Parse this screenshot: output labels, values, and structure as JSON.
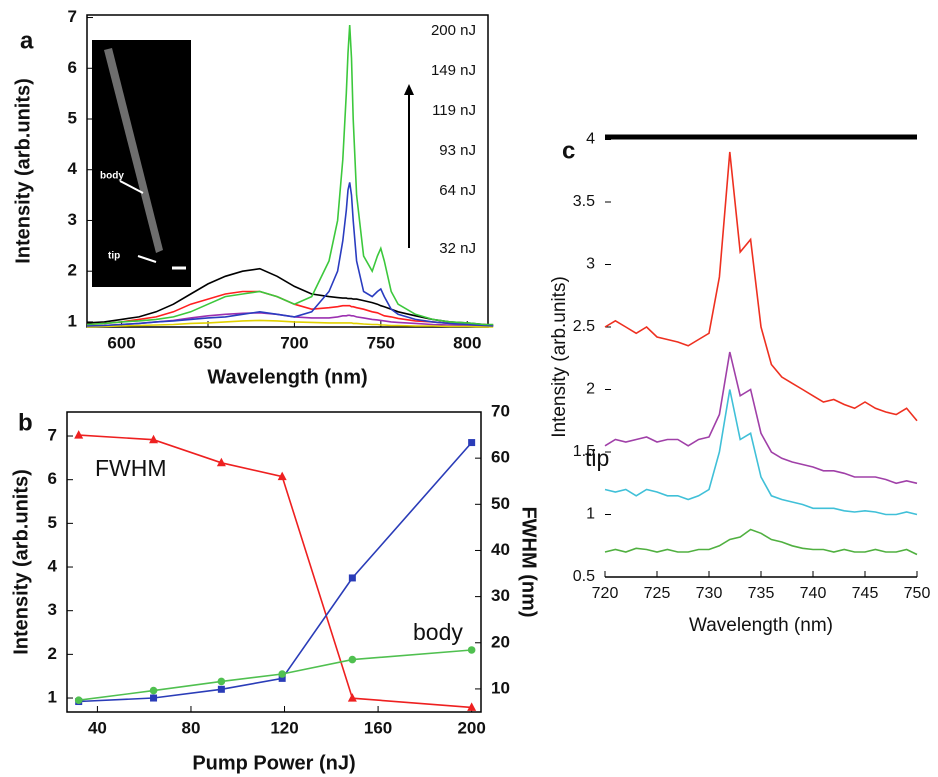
{
  "chart_data": [
    {
      "type": "line",
      "panel": "a",
      "x_label": "Wavelength (nm)",
      "y_label": "Intensity (arb.units)",
      "xlim": [
        580,
        812
      ],
      "xticks": [
        600,
        650,
        700,
        750,
        800
      ],
      "ylim": [
        0.9,
        7.05
      ],
      "yticks": [
        1,
        2,
        3,
        4,
        5,
        6,
        7
      ],
      "annotations": [
        "200 nJ",
        "149 nJ",
        "119 nJ",
        "93 nJ",
        "64 nJ",
        "32 nJ"
      ],
      "inset_labels": [
        "body",
        "tip"
      ],
      "x": [
        580,
        590,
        600,
        610,
        620,
        630,
        640,
        650,
        660,
        670,
        680,
        690,
        700,
        710,
        720,
        725,
        728,
        730,
        731,
        732,
        733,
        734,
        736,
        740,
        745,
        748,
        750,
        752,
        756,
        760,
        770,
        780,
        790,
        800,
        810,
        815
      ],
      "series": [
        {
          "color": "#000000",
          "values": [
            0.98,
            1.0,
            1.05,
            1.1,
            1.2,
            1.35,
            1.55,
            1.75,
            1.9,
            2.0,
            2.05,
            1.9,
            1.7,
            1.55,
            1.5,
            1.48,
            1.47,
            1.47,
            1.46,
            1.46,
            1.46,
            1.45,
            1.45,
            1.42,
            1.38,
            1.35,
            1.32,
            1.3,
            1.25,
            1.2,
            1.12,
            1.05,
            1.0,
            0.98,
            0.95,
            0.93
          ]
        },
        {
          "color": "#ff2020",
          "values": [
            0.95,
            0.97,
            1.0,
            1.05,
            1.1,
            1.2,
            1.35,
            1.45,
            1.55,
            1.6,
            1.6,
            1.5,
            1.35,
            1.25,
            1.28,
            1.3,
            1.32,
            1.32,
            1.32,
            1.32,
            1.3,
            1.3,
            1.28,
            1.25,
            1.2,
            1.18,
            1.15,
            1.12,
            1.1,
            1.07,
            1.02,
            1.0,
            0.97,
            0.96,
            0.95,
            0.94
          ]
        },
        {
          "color": "#9b30b0",
          "values": [
            0.92,
            0.93,
            0.95,
            0.97,
            1.0,
            1.03,
            1.08,
            1.12,
            1.15,
            1.17,
            1.18,
            1.15,
            1.1,
            1.08,
            1.08,
            1.1,
            1.12,
            1.12,
            1.13,
            1.13,
            1.12,
            1.12,
            1.1,
            1.08,
            1.05,
            1.04,
            1.03,
            1.02,
            1.0,
            0.99,
            0.97,
            0.95,
            0.94,
            0.93,
            0.92,
            0.92
          ]
        },
        {
          "color": "#e0d000",
          "values": [
            0.9,
            0.91,
            0.92,
            0.93,
            0.94,
            0.95,
            0.97,
            0.98,
            1.0,
            1.02,
            1.03,
            1.02,
            1.0,
            0.99,
            0.98,
            0.98,
            0.98,
            0.98,
            0.98,
            0.98,
            0.98,
            0.97,
            0.97,
            0.96,
            0.95,
            0.95,
            0.94,
            0.94,
            0.93,
            0.93,
            0.92,
            0.92,
            0.91,
            0.91,
            0.9,
            0.9
          ]
        },
        {
          "color": "#2a3cc0",
          "values": [
            0.92,
            0.93,
            0.95,
            0.97,
            1.0,
            1.02,
            1.05,
            1.08,
            1.1,
            1.15,
            1.2,
            1.15,
            1.1,
            1.2,
            1.6,
            2.0,
            2.6,
            3.2,
            3.6,
            3.75,
            3.5,
            3.0,
            2.2,
            1.6,
            1.5,
            1.6,
            1.65,
            1.5,
            1.25,
            1.15,
            1.05,
            1.0,
            0.97,
            0.95,
            0.93,
            0.92
          ]
        },
        {
          "color": "#3cc83c",
          "values": [
            0.95,
            0.97,
            1.0,
            1.02,
            1.05,
            1.1,
            1.2,
            1.35,
            1.5,
            1.55,
            1.6,
            1.5,
            1.35,
            1.5,
            2.2,
            3.0,
            4.2,
            5.5,
            6.3,
            6.85,
            6.2,
            5.0,
            3.5,
            2.3,
            2.0,
            2.3,
            2.45,
            2.2,
            1.6,
            1.35,
            1.15,
            1.05,
            1.0,
            0.98,
            0.95,
            0.95
          ]
        }
      ]
    },
    {
      "type": "line",
      "panel": "b",
      "x_label": "Pump Power (nJ)",
      "y_label": "Intensity (arb.units)",
      "y2_label": "FWHM (nm)",
      "xlim": [
        27,
        204
      ],
      "xticks": [
        40,
        80,
        120,
        160,
        200
      ],
      "ylim": [
        0.68,
        7.55
      ],
      "yticks": [
        1,
        2,
        3,
        4,
        5,
        6,
        7
      ],
      "y2lim": [
        5,
        70
      ],
      "y2ticks": [
        10,
        20,
        30,
        40,
        50,
        60,
        70
      ],
      "x": [
        32,
        64,
        93,
        119,
        149,
        200
      ],
      "series": [
        {
          "name": "FWHM",
          "color": "#ee2020",
          "marker": "triangle",
          "axis": "y2",
          "values": [
            65,
            64,
            59,
            56,
            8,
            6
          ]
        },
        {
          "name": "tip",
          "color": "#2a3cb8",
          "marker": "square",
          "values": [
            0.92,
            1.0,
            1.2,
            1.45,
            3.75,
            6.85
          ]
        },
        {
          "name": "body",
          "color": "#50c050",
          "marker": "circle",
          "values": [
            0.95,
            1.17,
            1.38,
            1.55,
            1.88,
            2.1
          ]
        }
      ]
    },
    {
      "type": "line",
      "panel": "c",
      "x_label": "Wavelength (nm)",
      "y_label": "Intensity (arb.units)",
      "xlim": [
        720,
        750
      ],
      "xticks": [
        720,
        725,
        730,
        735,
        740,
        745,
        750
      ],
      "ylim": [
        0.5,
        4.02
      ],
      "yticks": [
        0.5,
        1,
        1.5,
        2,
        2.5,
        3,
        3.5,
        4
      ],
      "x": [
        720,
        721,
        722,
        723,
        724,
        725,
        726,
        727,
        728,
        729,
        730,
        731,
        732,
        733,
        734,
        735,
        736,
        737,
        738,
        739,
        740,
        741,
        742,
        743,
        744,
        745,
        746,
        747,
        748,
        749,
        750
      ],
      "series": [
        {
          "color": "#ee3020",
          "values": [
            2.5,
            2.55,
            2.5,
            2.45,
            2.5,
            2.42,
            2.4,
            2.38,
            2.35,
            2.4,
            2.45,
            2.9,
            3.9,
            3.1,
            3.2,
            2.5,
            2.2,
            2.1,
            2.05,
            2.0,
            1.95,
            1.9,
            1.92,
            1.88,
            1.85,
            1.9,
            1.85,
            1.82,
            1.8,
            1.85,
            1.75
          ]
        },
        {
          "color": "#a040a8",
          "values": [
            1.55,
            1.6,
            1.58,
            1.6,
            1.62,
            1.58,
            1.6,
            1.6,
            1.55,
            1.6,
            1.62,
            1.8,
            2.3,
            1.95,
            2.0,
            1.65,
            1.5,
            1.45,
            1.42,
            1.4,
            1.38,
            1.35,
            1.35,
            1.33,
            1.3,
            1.3,
            1.3,
            1.28,
            1.25,
            1.27,
            1.25
          ]
        },
        {
          "color": "#40c0d8",
          "values": [
            1.2,
            1.18,
            1.2,
            1.15,
            1.2,
            1.18,
            1.15,
            1.15,
            1.12,
            1.15,
            1.2,
            1.5,
            2.0,
            1.6,
            1.65,
            1.3,
            1.15,
            1.12,
            1.1,
            1.08,
            1.05,
            1.05,
            1.05,
            1.03,
            1.02,
            1.03,
            1.02,
            1.0,
            1.0,
            1.02,
            1.0
          ]
        },
        {
          "color": "#50b040",
          "values": [
            0.7,
            0.72,
            0.7,
            0.73,
            0.72,
            0.7,
            0.72,
            0.7,
            0.7,
            0.72,
            0.72,
            0.75,
            0.8,
            0.82,
            0.88,
            0.85,
            0.8,
            0.78,
            0.75,
            0.73,
            0.72,
            0.72,
            0.7,
            0.72,
            0.7,
            0.7,
            0.72,
            0.7,
            0.7,
            0.72,
            0.68
          ]
        }
      ]
    }
  ]
}
